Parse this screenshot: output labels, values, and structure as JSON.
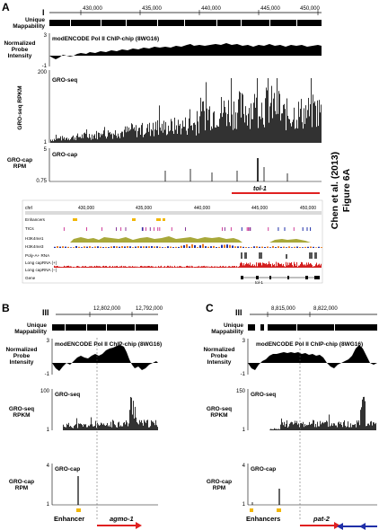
{
  "colors": {
    "black": "#000000",
    "red": "#e02020",
    "yellow": "#f2b705",
    "blue": "#1f2fa8",
    "olive": "#a8a83a",
    "orange": "#e57a22",
    "track_red": "#d42020",
    "grey": "#8a8a8a",
    "pink": "#d0409a",
    "purple": "#8a3a9a"
  },
  "side_caption": {
    "line1": "Chen et al. (2013)",
    "line2": "Figure 6A"
  },
  "panelA": {
    "letter": "A",
    "chrom": "I",
    "ticks": [
      "430,000",
      "435,000",
      "440,000",
      "445,000",
      "450,000"
    ],
    "unique_label": "Unique\nMappability",
    "chip_ylabel": "Normalized\nProbe\nIntensity",
    "chip_title": "modENCODE Pol II ChIP-chip (8WG16)",
    "chip_ymax": "3",
    "chip_ymin": "-1",
    "groseq_ylabel": "GRO-seq RPKM",
    "groseq_title": "GRO-seq",
    "groseq_ymax": "200",
    "groseq_ymin": "1",
    "grocap_ylabel": "GRO-cap\nRPM",
    "grocap_title": "GRO-cap",
    "grocap_ymax": "5",
    "grocap_ymin": "0.75",
    "gene": "tol-1",
    "browser": {
      "chrom_label": "chrI",
      "ticks": [
        "430,000",
        "435,000",
        "440,000",
        "445,000",
        "450,000"
      ],
      "tracks": [
        "Enhancers",
        "TICs",
        "H3K4me1",
        "H3K4me3",
        "Poly-A+ RNA",
        "Long capRNA (+)",
        "Long capRNA (−)",
        "Gene"
      ],
      "gene_label": "tol-1"
    }
  },
  "panelB": {
    "letter": "B",
    "chrom": "III",
    "ticks": [
      "12,802,000",
      "12,792,000"
    ],
    "unique_label": "Unique\nMappability",
    "chip_ylabel": "Normalized\nProbe\nIntensity",
    "chip_title": "modENCODE Pol II ChIP-chip (8WG16)",
    "chip_ymax": "3",
    "chip_ymin": "-1",
    "groseq_ylabel": "GRO-seq\nRPKM",
    "groseq_title": "GRO-seq",
    "groseq_ymax": "100",
    "groseq_ymin": "1",
    "grocap_ylabel": "GRO-cap\nRPM",
    "grocap_title": "GRO-cap",
    "grocap_ymax": "4",
    "grocap_ymin": "1",
    "enhancer_label": "Enhancer",
    "gene": "agmo-1"
  },
  "panelC": {
    "letter": "C",
    "chrom": "III",
    "ticks": [
      "8,815,000",
      "8,822,000"
    ],
    "unique_label": "Unique\nMappability",
    "chip_ylabel": "Normalized\nProbe\nIntensity",
    "chip_title": "modENCODE Pol II ChIP-chip (8WG16)",
    "chip_ymax": "3",
    "chip_ymin": "-1",
    "groseq_ylabel": "GRO-seq\nRPKM",
    "groseq_title": "GRO-seq",
    "groseq_ymax": "150",
    "groseq_ymin": "1",
    "grocap_ylabel": "GRO-cap\nRPM",
    "grocap_title": "GRO-cap",
    "grocap_ymax": "4",
    "grocap_ymin": "1",
    "enhancer_label": "Enhancers",
    "gene": "pat-2"
  }
}
